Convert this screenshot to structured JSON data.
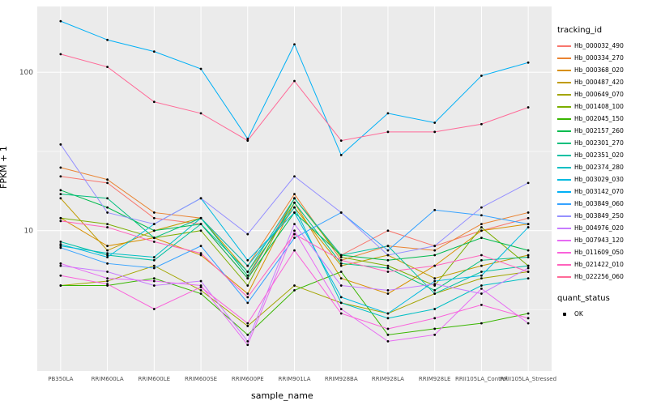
{
  "chart_data": {
    "type": "line",
    "title": "",
    "xlabel": "sample_name",
    "ylabel": "FPKM + 1",
    "y_scale": "log10",
    "ylim": [
      1.3,
      260
    ],
    "y_major_ticks": [
      10,
      100
    ],
    "y_minor_ticks": [
      3.162,
      31.623
    ],
    "grid": "on",
    "legend_position": "right",
    "panel_bg": "#EBEBEB",
    "grid_color": "#FFFFFF",
    "tick_label_color": "#4D4D4D",
    "point_color": "#000000",
    "categories": [
      "PB350LA",
      "RRIM600LA",
      "RRIM600LE",
      "RRIM600SE",
      "RRIM600PE",
      "RRIM901LA",
      "RRIM928BA",
      "RRIM928LA",
      "RRIM928LE",
      "RRII105LA_Control",
      "RRII105LA_Stressed"
    ],
    "series": [
      {
        "name": "Hb_000032_490",
        "color": "#F8766D",
        "values": [
          22,
          20,
          12,
          11,
          5,
          16,
          7,
          10,
          8,
          10,
          12
        ]
      },
      {
        "name": "Hb_000334_270",
        "color": "#EA8331",
        "values": [
          25,
          21,
          13,
          12,
          6,
          17,
          6.5,
          8,
          7.5,
          11,
          13
        ]
      },
      {
        "name": "Hb_000368_020",
        "color": "#D89000",
        "values": [
          12,
          8,
          9,
          7,
          4,
          15,
          5,
          4,
          6,
          10,
          11
        ]
      },
      {
        "name": "Hb_000487_420",
        "color": "#C09B00",
        "values": [
          16,
          7.5,
          10,
          12,
          5.5,
          14,
          6,
          7,
          5,
          6,
          7
        ]
      },
      {
        "name": "Hb_000649_070",
        "color": "#A3A500",
        "values": [
          4.5,
          4.8,
          6,
          4.2,
          2.5,
          4.5,
          3.5,
          3,
          4,
          5,
          5.5
        ]
      },
      {
        "name": "Hb_001408_100",
        "color": "#7CAE00",
        "values": [
          12,
          11,
          9,
          10,
          4.5,
          16,
          6.8,
          6,
          4.5,
          10.5,
          6
        ]
      },
      {
        "name": "Hb_002045_150",
        "color": "#39B600",
        "values": [
          4.5,
          4.5,
          5,
          4,
          2.2,
          4.2,
          5.5,
          2.2,
          2.4,
          2.6,
          3
        ]
      },
      {
        "name": "Hb_002157_260",
        "color": "#00BB4E",
        "values": [
          18,
          14,
          10,
          11,
          5,
          13,
          7,
          6.5,
          7,
          9,
          7.5
        ]
      },
      {
        "name": "Hb_002301_270",
        "color": "#00BF7D",
        "values": [
          17,
          16,
          9,
          12,
          5.2,
          15,
          6.2,
          5.8,
          4.2,
          6.5,
          6.8
        ]
      },
      {
        "name": "Hb_002351_020",
        "color": "#00C1A3",
        "values": [
          8.5,
          7,
          6.5,
          11,
          5.5,
          16,
          7,
          8,
          4,
          5.5,
          6
        ]
      },
      {
        "name": "Hb_002374_280",
        "color": "#00BFC4",
        "values": [
          8,
          7.2,
          6.8,
          12,
          6,
          14,
          3.5,
          2.8,
          3.2,
          4.5,
          5
        ]
      },
      {
        "name": "Hb_003029_030",
        "color": "#00BAE0",
        "values": [
          8.2,
          6.8,
          11,
          16,
          6.5,
          13,
          3.8,
          3,
          4.8,
          5.2,
          10.5
        ]
      },
      {
        "name": "Hb_003142_070",
        "color": "#00B0F6",
        "values": [
          210,
          160,
          135,
          105,
          38,
          150,
          30,
          55,
          48,
          95,
          115
        ]
      },
      {
        "name": "Hb_003849_060",
        "color": "#35A2FF",
        "values": [
          7.8,
          6.2,
          5.8,
          8,
          3.5,
          9,
          13,
          7.5,
          13.5,
          12.5,
          11
        ]
      },
      {
        "name": "Hb_003849_250",
        "color": "#9590FF",
        "values": [
          35,
          13,
          11,
          16,
          9.5,
          22,
          13,
          7,
          8,
          14,
          20
        ]
      },
      {
        "name": "Hb_004976_020",
        "color": "#C77CFF",
        "values": [
          6,
          5.5,
          4.5,
          4.8,
          2.0,
          11,
          4.5,
          4.2,
          4.6,
          4.0,
          5.8
        ]
      },
      {
        "name": "Hb_007943_120",
        "color": "#E76BF3",
        "values": [
          6.2,
          5,
          4.8,
          4.5,
          1.9,
          10,
          3.2,
          2.0,
          2.2,
          4.3,
          2.6
        ]
      },
      {
        "name": "Hb_011609_050",
        "color": "#FA62DB",
        "values": [
          5.2,
          4.6,
          3.2,
          4.4,
          2.6,
          7.5,
          3.0,
          2.4,
          2.8,
          3.4,
          2.8
        ]
      },
      {
        "name": "Hb_021422_010",
        "color": "#FF62BC",
        "values": [
          11.5,
          10.5,
          8.5,
          7.2,
          3.8,
          9.5,
          6.5,
          5.5,
          6.0,
          7.0,
          5.5
        ]
      },
      {
        "name": "Hb_022256_060",
        "color": "#FF6A98",
        "values": [
          130,
          108,
          65,
          55,
          37,
          88,
          37,
          42,
          42,
          47,
          60
        ]
      }
    ]
  },
  "legend": {
    "tracking_title": "tracking_id",
    "quant_title": "quant_status",
    "quant_value": "OK"
  }
}
